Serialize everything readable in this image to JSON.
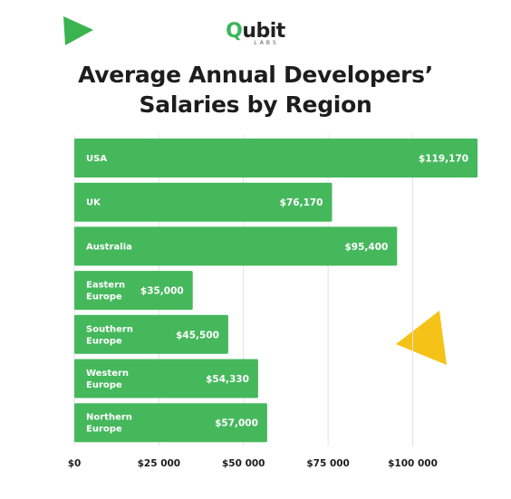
{
  "logo": {
    "q": "Q",
    "rest": "ubit",
    "sub": "LABS"
  },
  "colors": {
    "bar": "#45b85c",
    "accent_green": "#3bb34f",
    "accent_yellow": "#f5c218",
    "grid": "#e2e2e2"
  },
  "chart_data": {
    "type": "bar",
    "orientation": "horizontal",
    "title_lines": [
      "Average Annual Developers’",
      "Salaries by Region"
    ],
    "categories": [
      [
        "USA"
      ],
      [
        "UK"
      ],
      [
        "Australia"
      ],
      [
        "Eastern",
        "Europe"
      ],
      [
        "Southern",
        "Europe"
      ],
      [
        "Western",
        "Europe"
      ],
      [
        "Northern",
        "Europe"
      ]
    ],
    "values": [
      119170,
      76170,
      95400,
      35000,
      45500,
      54330,
      57000
    ],
    "value_labels": [
      "$119,170",
      "$76,170",
      "$95,400",
      "$35,000",
      "$45,500",
      "$54,330",
      "$57,000"
    ],
    "x_ticks": [
      0,
      25000,
      50000,
      75000,
      100000
    ],
    "x_tick_labels": [
      "$0",
      "$25 000",
      "$50 000",
      "$75 000",
      "$100 000"
    ],
    "xlim": [
      0,
      100000
    ],
    "grid": true
  }
}
